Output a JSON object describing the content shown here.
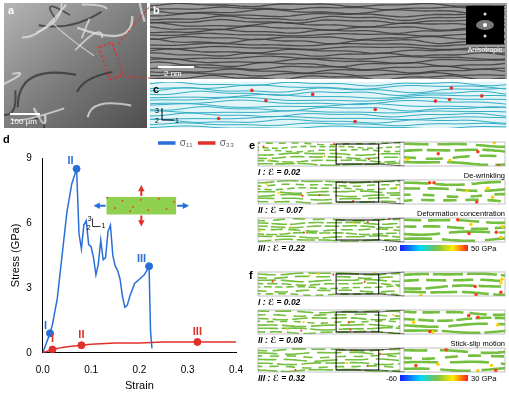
{
  "panel_a": {
    "label": "a",
    "scale_bar": "100 μm"
  },
  "panel_b": {
    "label": "b",
    "scale_bar": "2 nm",
    "inset_text": "Anisotropic"
  },
  "panel_c": {
    "label": "c",
    "axes": [
      "3",
      "2",
      "1"
    ]
  },
  "chart_data": {
    "type": "line",
    "label": "d",
    "x_label": "Strain",
    "y_label": "Stress (GPa)",
    "xlim": [
      0,
      0.4
    ],
    "xticks": [
      {
        "value": 0,
        "label": "0.0"
      },
      {
        "value": 0.1,
        "label": "0.1"
      },
      {
        "value": 0.2,
        "label": "0.2"
      },
      {
        "value": 0.3,
        "label": "0.3"
      },
      {
        "value": 0.4,
        "label": "0.4"
      }
    ],
    "ylim": [
      0,
      9
    ],
    "yticks": [
      0,
      3,
      6,
      9
    ],
    "grid": false,
    "legend": "upper right",
    "series": [
      {
        "name": "σ₁₁",
        "color": "#2a6fd8",
        "x": [
          0,
          0.005,
          0.01,
          0.015,
          0.02,
          0.03,
          0.04,
          0.05,
          0.06,
          0.07,
          0.075,
          0.08,
          0.085,
          0.09,
          0.095,
          0.1,
          0.105,
          0.11,
          0.115,
          0.12,
          0.125,
          0.13,
          0.135,
          0.14,
          0.145,
          0.15,
          0.155,
          0.16,
          0.165,
          0.17,
          0.175,
          0.18,
          0.19,
          0.2,
          0.21,
          0.218,
          0.22,
          0.223,
          0.226
        ],
        "values": [
          0,
          0.3,
          0.6,
          0.9,
          1.3,
          2.5,
          4.5,
          6.5,
          7.8,
          8.5,
          5.5,
          4.8,
          5.9,
          6.1,
          5.0,
          4.9,
          4.4,
          3.6,
          4.1,
          5.2,
          4.3,
          4.4,
          5.6,
          5.9,
          4.5,
          4.0,
          3.8,
          3.4,
          2.6,
          2.1,
          2.2,
          2.6,
          3.2,
          3.4,
          3.6,
          3.9,
          4.0,
          1.0,
          0.2
        ]
      },
      {
        "name": "σ₃₃",
        "color": "#e0302a",
        "x": [
          0,
          0.02,
          0.04,
          0.06,
          0.08,
          0.1,
          0.15,
          0.2,
          0.25,
          0.3,
          0.32,
          0.35,
          0.4
        ],
        "values": [
          0,
          0.15,
          0.25,
          0.3,
          0.35,
          0.4,
          0.45,
          0.45,
          0.5,
          0.5,
          0.5,
          0.5,
          0.5
        ]
      }
    ],
    "markers": [
      {
        "label": "I",
        "series": "σ₁₁",
        "x": 0.015,
        "y": 0.9
      },
      {
        "label": "II",
        "series": "σ₁₁",
        "x": 0.07,
        "y": 8.5
      },
      {
        "label": "III",
        "series": "σ₁₁",
        "x": 0.22,
        "y": 4.0
      },
      {
        "label": "I",
        "series": "σ₃₃",
        "x": 0.02,
        "y": 0.15
      },
      {
        "label": "II",
        "series": "σ₃₃",
        "x": 0.08,
        "y": 0.35
      },
      {
        "label": "III",
        "series": "σ₃₃",
        "x": 0.32,
        "y": 0.5
      }
    ],
    "inset_axes": [
      "3",
      "2",
      "1"
    ]
  },
  "panel_e": {
    "label": "e",
    "frames": [
      {
        "text": "I : ℰ = 0.02"
      },
      {
        "text": "II : ℰ = 0.07",
        "note": "De-wrinkling"
      },
      {
        "text": "III : ℰ = 0.22",
        "note": "Deformation concentration"
      }
    ],
    "colorbar": {
      "ticks": [
        {
          "value": -100,
          "label": "-100"
        },
        {
          "value": 50,
          "label": "50 GPa"
        }
      ]
    }
  },
  "panel_f": {
    "label": "f",
    "frames": [
      {
        "text": "I : ℰ = 0.02"
      },
      {
        "text": "II : ℰ = 0.08"
      },
      {
        "text": "III : ℰ = 0.32",
        "note": "Stick-slip motion"
      }
    ],
    "colorbar": {
      "ticks": [
        {
          "value": -60,
          "label": "-60"
        },
        {
          "value": 30,
          "label": "30 GPa"
        }
      ]
    }
  }
}
